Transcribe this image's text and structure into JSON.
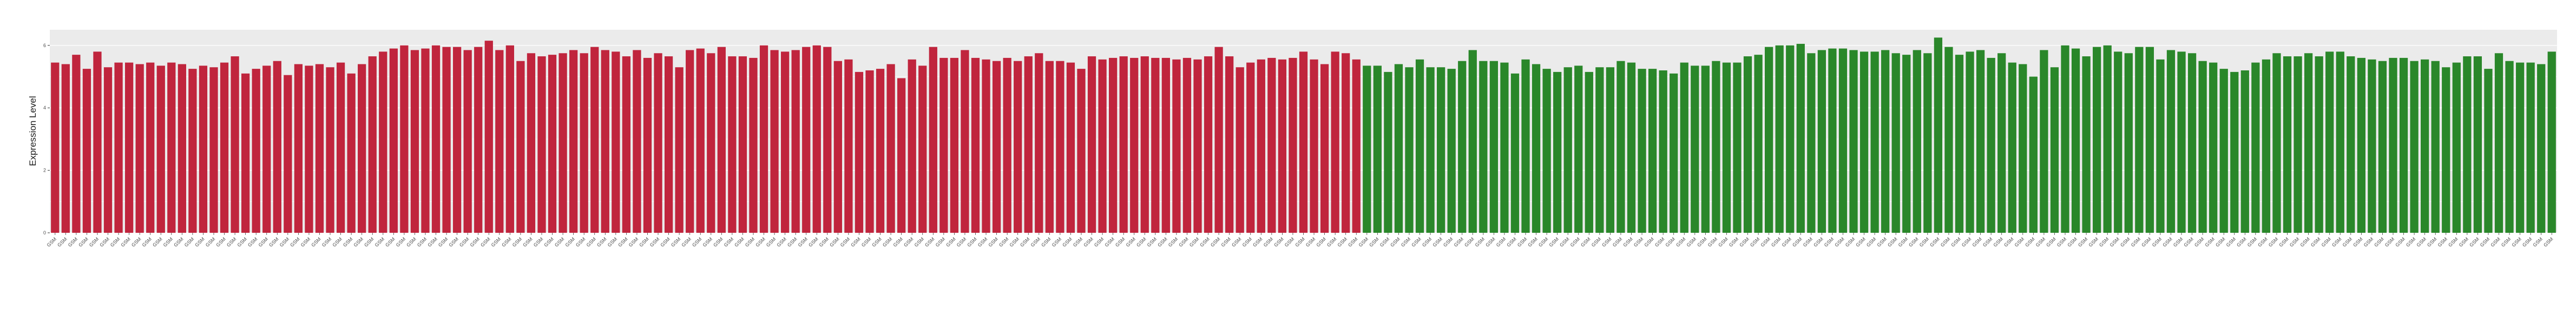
{
  "chart_data": {
    "type": "bar",
    "title": "",
    "xlabel": "",
    "ylabel": "Expression Level",
    "ylim": [
      0,
      6.5
    ],
    "yticks": [
      0,
      2,
      4,
      6
    ],
    "ytick_labels": [
      "0",
      "2",
      "4",
      "6"
    ],
    "grid": true,
    "legend": "none",
    "category_prefix": "GSM",
    "groups": [
      {
        "color": "#c0253d",
        "values": [
          5.45,
          5.4,
          5.7,
          5.25,
          5.8,
          5.3,
          5.45,
          5.45,
          5.4,
          5.45,
          5.35,
          5.45,
          5.4,
          5.25,
          5.35,
          5.3,
          5.45,
          5.65,
          5.1,
          5.25,
          5.35,
          5.5,
          5.05,
          5.4,
          5.35,
          5.4,
          5.3,
          5.45,
          5.1,
          5.4,
          5.65,
          5.8,
          5.9,
          6.0,
          5.85,
          5.9,
          6.0,
          5.95,
          5.95,
          5.85,
          5.95,
          6.15,
          5.85,
          6.0,
          5.5,
          5.75,
          5.65,
          5.7,
          5.75,
          5.85,
          5.75,
          5.95,
          5.85,
          5.8,
          5.65,
          5.85,
          5.6,
          5.75,
          5.65,
          5.3,
          5.85,
          5.9,
          5.75,
          5.95,
          5.65,
          5.65,
          5.6,
          6.0,
          5.85,
          5.8,
          5.85,
          5.95,
          6.0,
          5.95,
          5.5,
          5.55,
          5.15,
          5.2,
          5.25,
          5.4,
          4.95,
          5.55,
          5.35,
          5.95,
          5.6,
          5.6,
          5.85,
          5.6,
          5.55,
          5.5,
          5.6,
          5.5,
          5.65,
          5.75,
          5.5,
          5.5,
          5.45,
          5.25,
          5.65,
          5.55,
          5.6,
          5.65,
          5.6,
          5.65,
          5.6,
          5.6,
          5.55,
          5.6,
          5.55,
          5.65,
          5.95,
          5.65,
          5.3,
          5.45,
          5.55,
          5.6,
          5.55,
          5.6,
          5.8,
          5.55,
          5.4,
          5.8,
          5.75,
          5.55
        ]
      },
      {
        "color": "#2a872a",
        "values": [
          5.35,
          5.35,
          5.15,
          5.4,
          5.3,
          5.55,
          5.3,
          5.3,
          5.25,
          5.5,
          5.85,
          5.5,
          5.5,
          5.45,
          5.1,
          5.55,
          5.4,
          5.25,
          5.15,
          5.3,
          5.35,
          5.15,
          5.3,
          5.3,
          5.5,
          5.45,
          5.25,
          5.25,
          5.2,
          5.1,
          5.45,
          5.35,
          5.35,
          5.5,
          5.45,
          5.45,
          5.65,
          5.7,
          5.95,
          6.0,
          6.0,
          6.05,
          5.75,
          5.85,
          5.9,
          5.9,
          5.85,
          5.8,
          5.8,
          5.85,
          5.75,
          5.7,
          5.85,
          5.75,
          6.25,
          5.95,
          5.7,
          5.8,
          5.85,
          5.6,
          5.75,
          5.45,
          5.4,
          5.0,
          5.85,
          5.3,
          6.0,
          5.9,
          5.65,
          5.95,
          6.0,
          5.8,
          5.75,
          5.95,
          5.95,
          5.55,
          5.85,
          5.8,
          5.75,
          5.5,
          5.45,
          5.25,
          5.15,
          5.2,
          5.45,
          5.55,
          5.75,
          5.65,
          5.65,
          5.75,
          5.65,
          5.8,
          5.8,
          5.65,
          5.6,
          5.55,
          5.5,
          5.6,
          5.6,
          5.5,
          5.55,
          5.5,
          5.3,
          5.45,
          5.65,
          5.65,
          5.25,
          5.75,
          5.5,
          5.45,
          5.45,
          5.4,
          5.8
        ]
      }
    ]
  }
}
